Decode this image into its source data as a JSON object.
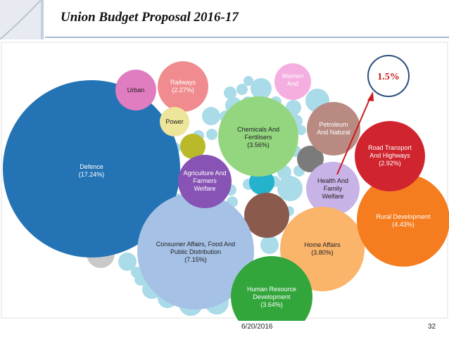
{
  "title": "Union Budget Proposal 2016-17",
  "annotation": "1.5%",
  "footer": {
    "date": "6/20/2016",
    "page": "32"
  },
  "colors": {
    "defence": "#2474b5",
    "consumer": "#a6c1e6",
    "chemicals": "#94d67f",
    "agriculture": "#8753b5",
    "health": "#c8b3e6",
    "home": "#fbb56a",
    "rural": "#f57c1f",
    "road": "#d0242f",
    "petroleum": "#b88a82",
    "hrd": "#32a53b",
    "railways": "#f08c8f",
    "urban": "#e07cc0",
    "women": "#f4aee0",
    "power": "#ede59a",
    "filler": "#a9dbe9",
    "arrow": "#cc1a1a"
  },
  "bubbles": [
    {
      "key": "defence",
      "label": [
        "Defence",
        "(17.24%)"
      ]
    },
    {
      "key": "consumer",
      "label": [
        "Consumer Affairs, Food And",
        "Public Distribution",
        "(7.15%)"
      ]
    },
    {
      "key": "chemicals",
      "label": [
        "Chemicals And",
        "Fertilisers",
        "(3.56%)"
      ]
    },
    {
      "key": "agriculture",
      "label": [
        "Agriculture And",
        "Farmers",
        "Welfare"
      ]
    },
    {
      "key": "health",
      "label": [
        "Health And",
        "Family",
        "Welfare"
      ]
    },
    {
      "key": "home",
      "label": [
        "Home Affairs",
        "(3.80%)"
      ]
    },
    {
      "key": "rural",
      "label": [
        "Rural Development",
        "(4.43%)"
      ]
    },
    {
      "key": "road",
      "label": [
        "Road Transport",
        "And Highways",
        "(2.92%)"
      ]
    },
    {
      "key": "petroleum",
      "label": [
        "Petroleum",
        "And Natural"
      ]
    },
    {
      "key": "hrd",
      "label": [
        "Human Resource",
        "Development",
        "(3.64%)"
      ]
    },
    {
      "key": "railways",
      "label": [
        "Railways",
        "(2.27%)"
      ]
    },
    {
      "key": "urban",
      "label": [
        "Urban"
      ]
    },
    {
      "key": "women",
      "label": [
        "Women",
        "And"
      ]
    },
    {
      "key": "power",
      "label": [
        "Power"
      ]
    }
  ]
}
